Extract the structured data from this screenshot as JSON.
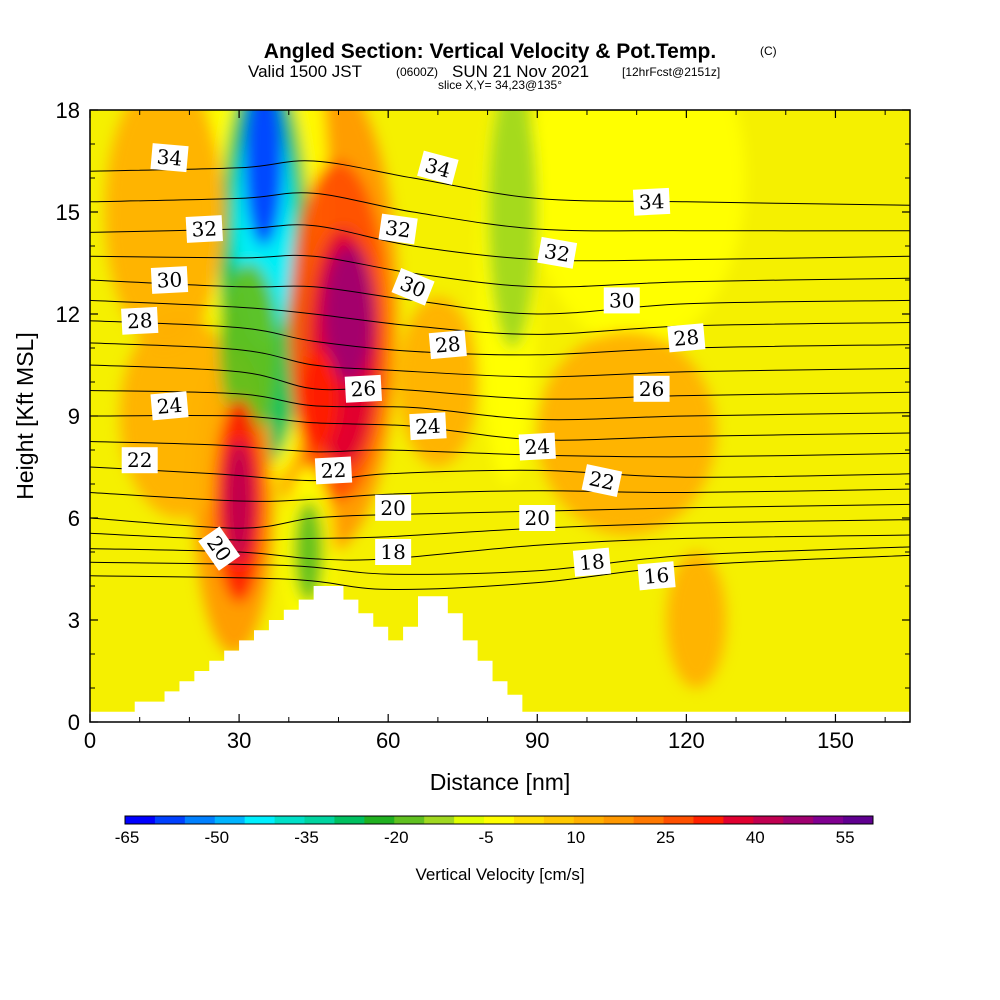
{
  "title": {
    "main": "Angled Section: Vertical Velocity & Pot.Temp.",
    "unit_tag": "(C)",
    "valid_prefix": "Valid 1500 JST",
    "valid_utc": "(0600Z)",
    "valid_date": "SUN 21 Nov 2021",
    "forecast": "[12hrFcst@2151z]",
    "slice": "slice X,Y= 34,23@135°"
  },
  "chart_data": {
    "type": "heatmap",
    "xlabel": "Distance [nm]",
    "ylabel": "Height [Kft MSL]",
    "xlim": [
      0,
      165
    ],
    "ylim": [
      0,
      18
    ],
    "x_ticks": [
      0,
      30,
      60,
      90,
      120,
      150
    ],
    "y_ticks": [
      0,
      3,
      6,
      9,
      12,
      15,
      18
    ],
    "background_value_cm_s": 5,
    "colorbar": {
      "label": "Vertical Velocity [cm/s]",
      "tick_labels": [
        "-65",
        "-50",
        "-35",
        "-20",
        "-5",
        "10",
        "25",
        "40",
        "55"
      ],
      "colors": [
        "#0000ff",
        "#0040ff",
        "#0080ff",
        "#00b4ff",
        "#00f0ff",
        "#00e0c8",
        "#00d4a0",
        "#00c060",
        "#20b020",
        "#60c020",
        "#a0d820",
        "#e0ff00",
        "#ffff00",
        "#ffe000",
        "#ffc800",
        "#ffb000",
        "#ff9800",
        "#ff7800",
        "#ff5000",
        "#ff2000",
        "#e00030",
        "#c00050",
        "#a00070",
        "#800090",
        "#600090"
      ]
    },
    "vertical_velocity_features": [
      {
        "x": 35,
        "y": 16.5,
        "rx": 4,
        "ry": 2.5,
        "value": -65
      },
      {
        "x": 35,
        "y": 14.5,
        "rx": 6,
        "ry": 3.5,
        "value": -50
      },
      {
        "x": 35,
        "y": 13.5,
        "rx": 9,
        "ry": 6,
        "value": -35
      },
      {
        "x": 32,
        "y": 11,
        "rx": 6,
        "ry": 2.5,
        "value": -25
      },
      {
        "x": 36,
        "y": 15,
        "rx": 12,
        "ry": 8,
        "value": -10
      },
      {
        "x": 52,
        "y": 12,
        "rx": 5,
        "ry": 2,
        "value": 45
      },
      {
        "x": 51,
        "y": 11,
        "rx": 7,
        "ry": 3.5,
        "value": 35
      },
      {
        "x": 50,
        "y": 11.5,
        "rx": 10,
        "ry": 5,
        "value": 25
      },
      {
        "x": 48,
        "y": 12,
        "rx": 14,
        "ry": 7,
        "value": 15
      },
      {
        "x": 46,
        "y": 9.5,
        "rx": 4,
        "ry": 1.5,
        "value": 30
      },
      {
        "x": 30,
        "y": 6.5,
        "rx": 3,
        "ry": 1.8,
        "value": 40
      },
      {
        "x": 30,
        "y": 6.5,
        "rx": 5,
        "ry": 3,
        "value": 30
      },
      {
        "x": 29,
        "y": 6.5,
        "rx": 8,
        "ry": 4.5,
        "value": 15
      },
      {
        "x": 44,
        "y": 5,
        "rx": 3,
        "ry": 1.5,
        "value": -25
      },
      {
        "x": 44,
        "y": 5,
        "rx": 5,
        "ry": 2.5,
        "value": -10
      },
      {
        "x": 85,
        "y": 15,
        "rx": 5,
        "ry": 4,
        "value": -20
      },
      {
        "x": 84,
        "y": 13,
        "rx": 6,
        "ry": 6,
        "value": -5
      },
      {
        "x": 112,
        "y": 16,
        "rx": 15,
        "ry": 3,
        "value": -10
      },
      {
        "x": 110,
        "y": 16,
        "rx": 22,
        "ry": 5,
        "value": -5
      },
      {
        "x": 15,
        "y": 15,
        "rx": 12,
        "ry": 4,
        "value": 10
      },
      {
        "x": 18,
        "y": 9,
        "rx": 12,
        "ry": 3,
        "value": 10
      },
      {
        "x": 70,
        "y": 10,
        "rx": 8,
        "ry": 2.5,
        "value": 10
      },
      {
        "x": 108,
        "y": 8.5,
        "rx": 18,
        "ry": 3,
        "value": 10
      },
      {
        "x": 122,
        "y": 3,
        "rx": 6,
        "ry": 2,
        "value": 10
      }
    ],
    "potential_temperature_contours": [
      {
        "label": "16",
        "points": [
          [
            0,
            4.3
          ],
          [
            40,
            4.2
          ],
          [
            60,
            3.9
          ],
          [
            90,
            4.1
          ],
          [
            120,
            4.6
          ],
          [
            165,
            4.9
          ]
        ]
      },
      {
        "label": "18",
        "points": [
          [
            0,
            5.1
          ],
          [
            30,
            5.0
          ],
          [
            45,
            4.8
          ],
          [
            60,
            4.8
          ],
          [
            90,
            5.2
          ],
          [
            120,
            5.4
          ],
          [
            165,
            5.5
          ]
        ]
      },
      {
        "label": "20",
        "points": [
          [
            0,
            6.0
          ],
          [
            30,
            5.7
          ],
          [
            45,
            6.0
          ],
          [
            60,
            6.1
          ],
          [
            90,
            6.2
          ],
          [
            120,
            6.3
          ],
          [
            165,
            6.4
          ]
        ]
      },
      {
        "label": "22",
        "points": [
          [
            0,
            7.5
          ],
          [
            25,
            7.3
          ],
          [
            45,
            7.1
          ],
          [
            60,
            7.3
          ],
          [
            90,
            7.4
          ],
          [
            120,
            7.2
          ],
          [
            165,
            7.3
          ]
        ]
      },
      {
        "label": "24",
        "points": [
          [
            0,
            9.0
          ],
          [
            30,
            9.0
          ],
          [
            45,
            8.8
          ],
          [
            65,
            8.7
          ],
          [
            90,
            8.3
          ],
          [
            120,
            8.4
          ],
          [
            165,
            8.5
          ]
        ]
      },
      {
        "label": "26",
        "points": [
          [
            0,
            10.5
          ],
          [
            30,
            10.3
          ],
          [
            45,
            9.8
          ],
          [
            60,
            9.8
          ],
          [
            90,
            9.5
          ],
          [
            120,
            9.6
          ],
          [
            165,
            9.7
          ]
        ]
      },
      {
        "label": "28",
        "points": [
          [
            0,
            11.8
          ],
          [
            30,
            11.6
          ],
          [
            45,
            11.2
          ],
          [
            65,
            10.9
          ],
          [
            90,
            10.8
          ],
          [
            120,
            11.0
          ],
          [
            165,
            11.1
          ]
        ]
      },
      {
        "label": "30",
        "points": [
          [
            0,
            13.0
          ],
          [
            30,
            12.8
          ],
          [
            45,
            12.8
          ],
          [
            65,
            12.4
          ],
          [
            90,
            12.0
          ],
          [
            120,
            12.3
          ],
          [
            165,
            12.4
          ]
        ]
      },
      {
        "label": "32",
        "points": [
          [
            0,
            14.4
          ],
          [
            30,
            14.5
          ],
          [
            45,
            14.6
          ],
          [
            65,
            14.0
          ],
          [
            90,
            13.6
          ],
          [
            120,
            13.6
          ],
          [
            165,
            13.7
          ]
        ]
      },
      {
        "label": "34",
        "points": [
          [
            0,
            16.2
          ],
          [
            30,
            16.3
          ],
          [
            45,
            16.5
          ],
          [
            65,
            16.0
          ],
          [
            90,
            15.4
          ],
          [
            120,
            15.3
          ],
          [
            165,
            15.2
          ]
        ]
      }
    ],
    "contour_labels": [
      {
        "text": "34",
        "x": 16,
        "y": 16.6,
        "rot": 5
      },
      {
        "text": "34",
        "x": 70,
        "y": 16.3,
        "rot": 15
      },
      {
        "text": "34",
        "x": 113,
        "y": 15.3,
        "rot": -3
      },
      {
        "text": "32",
        "x": 23,
        "y": 14.5,
        "rot": -3
      },
      {
        "text": "32",
        "x": 62,
        "y": 14.5,
        "rot": 8
      },
      {
        "text": "32",
        "x": 94,
        "y": 13.8,
        "rot": 10
      },
      {
        "text": "30",
        "x": 16,
        "y": 13.0,
        "rot": -3
      },
      {
        "text": "30",
        "x": 65,
        "y": 12.8,
        "rot": 22
      },
      {
        "text": "30",
        "x": 107,
        "y": 12.4,
        "rot": 0
      },
      {
        "text": "28",
        "x": 10,
        "y": 11.8,
        "rot": -3
      },
      {
        "text": "28",
        "x": 72,
        "y": 11.1,
        "rot": -5
      },
      {
        "text": "28",
        "x": 120,
        "y": 11.3,
        "rot": -5
      },
      {
        "text": "26",
        "x": 55,
        "y": 9.8,
        "rot": -3
      },
      {
        "text": "26",
        "x": 113,
        "y": 9.8,
        "rot": 0
      },
      {
        "text": "24",
        "x": 16,
        "y": 9.3,
        "rot": -5
      },
      {
        "text": "24",
        "x": 68,
        "y": 8.7,
        "rot": -3
      },
      {
        "text": "24",
        "x": 90,
        "y": 8.1,
        "rot": -3
      },
      {
        "text": "22",
        "x": 10,
        "y": 7.7,
        "rot": 0
      },
      {
        "text": "22",
        "x": 49,
        "y": 7.4,
        "rot": -3
      },
      {
        "text": "22",
        "x": 103,
        "y": 7.1,
        "rot": 12
      },
      {
        "text": "20",
        "x": 26,
        "y": 5.1,
        "rot": 55
      },
      {
        "text": "20",
        "x": 61,
        "y": 6.3,
        "rot": 0
      },
      {
        "text": "20",
        "x": 90,
        "y": 6.0,
        "rot": 0
      },
      {
        "text": "18",
        "x": 61,
        "y": 5.0,
        "rot": 0
      },
      {
        "text": "18",
        "x": 101,
        "y": 4.7,
        "rot": -5
      },
      {
        "text": "16",
        "x": 114,
        "y": 4.3,
        "rot": -5
      }
    ],
    "terrain_outline": [
      [
        0,
        0.3
      ],
      [
        9,
        0.3
      ],
      [
        9,
        0.6
      ],
      [
        15,
        0.6
      ],
      [
        15,
        0.9
      ],
      [
        18,
        0.9
      ],
      [
        18,
        1.2
      ],
      [
        21,
        1.2
      ],
      [
        21,
        1.5
      ],
      [
        24,
        1.5
      ],
      [
        24,
        1.8
      ],
      [
        27,
        1.8
      ],
      [
        27,
        2.1
      ],
      [
        30,
        2.1
      ],
      [
        30,
        2.4
      ],
      [
        33,
        2.4
      ],
      [
        33,
        2.7
      ],
      [
        36,
        2.7
      ],
      [
        36,
        3.0
      ],
      [
        39,
        3.0
      ],
      [
        39,
        3.3
      ],
      [
        42,
        3.3
      ],
      [
        42,
        3.6
      ],
      [
        45,
        3.6
      ],
      [
        45,
        4.0
      ],
      [
        51,
        4.0
      ],
      [
        51,
        3.6
      ],
      [
        54,
        3.6
      ],
      [
        54,
        3.2
      ],
      [
        57,
        3.2
      ],
      [
        57,
        2.8
      ],
      [
        60,
        2.8
      ],
      [
        60,
        2.4
      ],
      [
        63,
        2.4
      ],
      [
        63,
        2.8
      ],
      [
        66,
        2.8
      ],
      [
        66,
        3.7
      ],
      [
        72,
        3.7
      ],
      [
        72,
        3.2
      ],
      [
        75,
        3.2
      ],
      [
        75,
        2.4
      ],
      [
        78,
        2.4
      ],
      [
        78,
        1.8
      ],
      [
        81,
        1.8
      ],
      [
        81,
        1.2
      ],
      [
        84,
        1.2
      ],
      [
        84,
        0.8
      ],
      [
        87,
        0.8
      ],
      [
        87,
        0.3
      ],
      [
        165,
        0.3
      ]
    ]
  }
}
